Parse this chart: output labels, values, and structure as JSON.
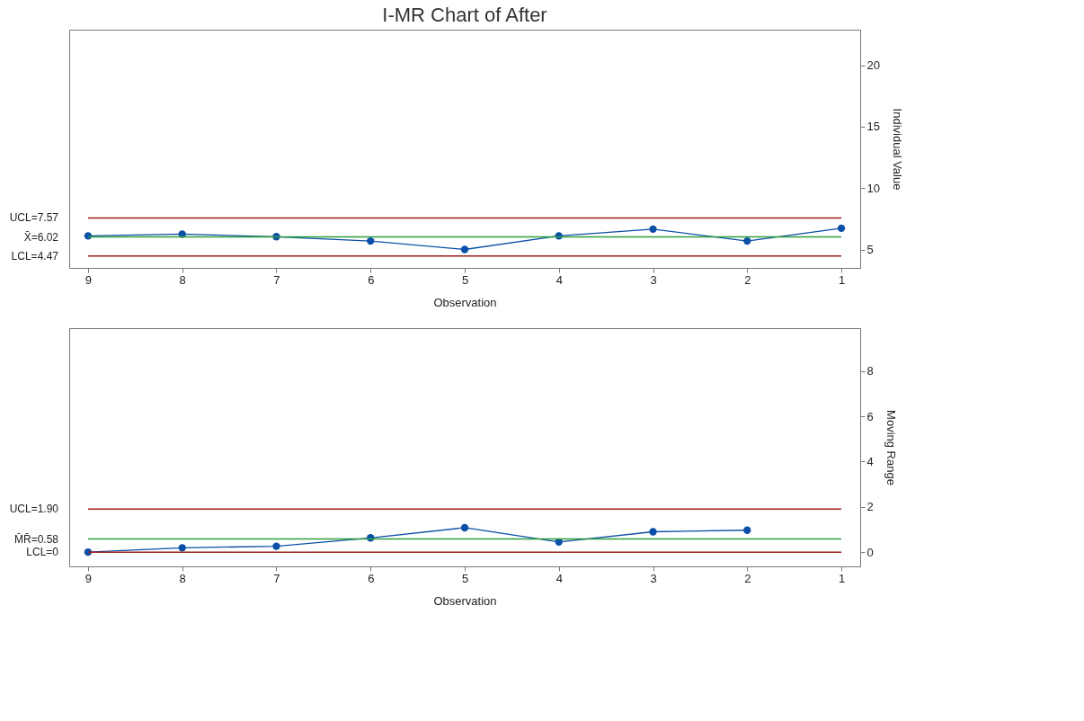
{
  "chart_data": [
    {
      "type": "line",
      "title": "I-MR Chart of After",
      "xlabel": "Observation",
      "ylabel": "Individual Value",
      "x": [
        1,
        2,
        3,
        4,
        5,
        6,
        7,
        8,
        9
      ],
      "series": [
        {
          "color": "#0b50a8",
          "values": [
            6.73,
            5.69,
            6.66,
            6.11,
            5.0,
            5.69,
            6.04,
            6.25,
            6.11
          ]
        }
      ],
      "xlim": [
        9.2,
        0.8
      ],
      "xticks": [
        1,
        2,
        3,
        4,
        5,
        6,
        7,
        8,
        9
      ],
      "ylim": [
        3.5,
        22.9
      ],
      "yticks": [
        5,
        10,
        15,
        20
      ],
      "marker": "circle",
      "line_style": "solid",
      "grid": false,
      "ref_lines": [
        {
          "axis": "y",
          "value": 7.57,
          "label": "UCL=7.57",
          "color": "#a01c1c"
        },
        {
          "axis": "y",
          "value": 6.02,
          "label": "X̄=6.02",
          "color": "#2e9e3e"
        },
        {
          "axis": "y",
          "value": 4.47,
          "label": "LCL=4.47",
          "color": "#a01c1c"
        }
      ]
    },
    {
      "type": "line",
      "xlabel": "Observation",
      "ylabel": "Moving Range",
      "series": [
        {
          "color": "#0b50a8",
          "x": [
            2,
            3,
            4,
            5,
            6,
            7,
            8,
            9
          ],
          "values": [
            0.97,
            0.9,
            0.45,
            1.08,
            0.63,
            0.26,
            0.19,
            0.0
          ]
        }
      ],
      "xlim": [
        9.2,
        0.8
      ],
      "xticks": [
        1,
        2,
        3,
        4,
        5,
        6,
        7,
        8,
        9
      ],
      "ylim": [
        -0.63,
        9.9
      ],
      "yticks": [
        0,
        2,
        4,
        6,
        8
      ],
      "marker": "circle",
      "line_style": "solid",
      "grid": false,
      "ref_lines": [
        {
          "axis": "y",
          "value": 1.9,
          "label": "UCL=1.90",
          "color": "#a01c1c"
        },
        {
          "axis": "y",
          "value": 0.58,
          "label": "M̄R̄=0.58",
          "color": "#2e9e3e"
        },
        {
          "axis": "y",
          "value": 0,
          "label": "LCL=0",
          "color": "#a01c1c"
        }
      ]
    }
  ]
}
